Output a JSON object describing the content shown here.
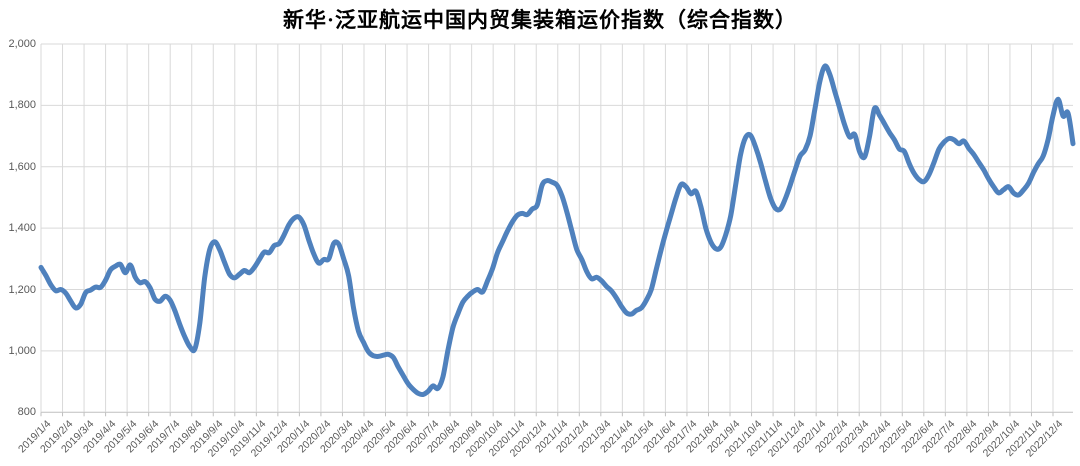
{
  "title": "新华·泛亚航运中国内贸集装箱运价指数（综合指数）",
  "colors": {
    "line": "#4F81BD",
    "grid": "#D9D9D9",
    "axis": "#BFBFBF",
    "tick_label": "#595959",
    "title": "#000000",
    "background": "#FFFFFF"
  },
  "chart_data": {
    "type": "line",
    "title": "新华·泛亚航运中国内贸集装箱运价指数（综合指数）",
    "xlabel": "",
    "ylabel": "",
    "ylim": [
      800,
      2000
    ],
    "y_tick_step": 200,
    "y_tick_values": [
      800,
      1000,
      1200,
      1400,
      1600,
      1800,
      2000
    ],
    "y_tick_labels": [
      "800",
      "1,000",
      "1,200",
      "1,400",
      "1,600",
      "1,800",
      "2,000"
    ],
    "grid": true,
    "legend": "none",
    "x_tick_labels": [
      "2019/1/4",
      "2019/2/4",
      "2019/3/4",
      "2019/4/4",
      "2019/5/4",
      "2019/6/4",
      "2019/7/4",
      "2019/8/4",
      "2019/9/4",
      "2019/10/4",
      "2019/11/4",
      "2019/12/4",
      "2020/1/4",
      "2020/2/4",
      "2020/3/4",
      "2020/4/4",
      "2020/5/4",
      "2020/6/4",
      "2020/7/4",
      "2020/8/4",
      "2020/9/4",
      "2020/10/4",
      "2020/11/4",
      "2020/12/4",
      "2021/1/4",
      "2021/2/4",
      "2021/3/4",
      "2021/4/4",
      "2021/5/4",
      "2021/6/4",
      "2021/7/4",
      "2021/8/4",
      "2021/9/4",
      "2021/10/4",
      "2021/11/4",
      "2021/12/4",
      "2022/1/4",
      "2022/2/4",
      "2022/3/4",
      "2022/4/4",
      "2022/5/4",
      "2022/6/4",
      "2022/7/4",
      "2022/8/4",
      "2022/9/4",
      "2022/10/4",
      "2022/11/4",
      "2022/12/4"
    ],
    "series": [
      {
        "name": "综合指数",
        "x_start_date": "2019/1/4",
        "x_interval_days": 7,
        "values": [
          1272,
          1245,
          1215,
          1196,
          1200,
          1188,
          1162,
          1140,
          1152,
          1190,
          1198,
          1208,
          1207,
          1230,
          1264,
          1276,
          1282,
          1255,
          1280,
          1240,
          1222,
          1226,
          1205,
          1168,
          1162,
          1178,
          1166,
          1130,
          1085,
          1045,
          1014,
          1006,
          1090,
          1240,
          1330,
          1356,
          1330,
          1288,
          1250,
          1238,
          1250,
          1262,
          1255,
          1272,
          1298,
          1322,
          1320,
          1343,
          1350,
          1378,
          1412,
          1432,
          1436,
          1410,
          1360,
          1315,
          1286,
          1298,
          1300,
          1350,
          1348,
          1300,
          1245,
          1139,
          1064,
          1028,
          997,
          984,
          982,
          986,
          989,
          979,
          948,
          920,
          893,
          875,
          862,
          858,
          868,
          886,
          878,
          915,
          1000,
          1075,
          1120,
          1158,
          1178,
          1192,
          1200,
          1192,
          1228,
          1268,
          1320,
          1355,
          1390,
          1420,
          1442,
          1448,
          1444,
          1462,
          1475,
          1540,
          1555,
          1550,
          1540,
          1505,
          1452,
          1390,
          1330,
          1298,
          1258,
          1235,
          1240,
          1228,
          1210,
          1195,
          1172,
          1145,
          1124,
          1120,
          1132,
          1140,
          1165,
          1200,
          1265,
          1330,
          1390,
          1445,
          1500,
          1542,
          1535,
          1512,
          1520,
          1470,
          1400,
          1355,
          1333,
          1338,
          1378,
          1440,
          1540,
          1640,
          1695,
          1703,
          1665,
          1615,
          1555,
          1500,
          1465,
          1462,
          1495,
          1540,
          1590,
          1635,
          1655,
          1700,
          1790,
          1880,
          1928,
          1900,
          1845,
          1790,
          1735,
          1697,
          1705,
          1648,
          1632,
          1700,
          1790,
          1768,
          1740,
          1712,
          1688,
          1658,
          1650,
          1610,
          1578,
          1558,
          1552,
          1575,
          1615,
          1658,
          1680,
          1692,
          1688,
          1675,
          1684,
          1660,
          1640,
          1615,
          1590,
          1560,
          1535,
          1515,
          1525,
          1535,
          1515,
          1508,
          1524,
          1545,
          1580,
          1610,
          1635,
          1690,
          1770,
          1820,
          1765,
          1775,
          1675
        ]
      }
    ]
  }
}
